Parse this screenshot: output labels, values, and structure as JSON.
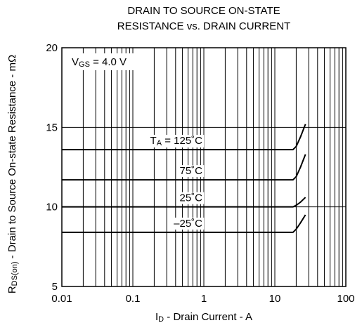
{
  "chart_data": {
    "type": "line",
    "title_lines": [
      "DRAIN TO SOURCE ON-STATE",
      "RESISTANCE vs. DRAIN CURRENT"
    ],
    "x_label": {
      "main": "I",
      "sub": "D",
      "rest": " - Drain Current - A"
    },
    "y_label": {
      "main": "R",
      "sub": "DS(on)",
      "rest": " - Drain to Source On-state Resistance - mΩ"
    },
    "condition": {
      "main": "V",
      "sub": "GS",
      "rest": " = 4.0 V"
    },
    "series_prefix": {
      "main": "T",
      "sub": "A",
      "rest": " = "
    },
    "x": [
      0.01,
      1,
      18,
      20,
      23,
      27
    ],
    "series": [
      {
        "name": "125˚C",
        "color": "#000000",
        "values": [
          13.6,
          13.6,
          13.6,
          13.8,
          14.4,
          15.2
        ]
      },
      {
        "name": "75˚C",
        "color": "#000000",
        "values": [
          11.7,
          11.7,
          11.7,
          11.9,
          12.5,
          13.3
        ]
      },
      {
        "name": "25˚C",
        "color": "#000000",
        "values": [
          10.0,
          10.0,
          10.0,
          10.1,
          10.3,
          10.6
        ]
      },
      {
        "name": "–25˚C",
        "color": "#000000",
        "values": [
          8.4,
          8.4,
          8.4,
          8.6,
          9.0,
          9.5
        ]
      }
    ],
    "x_log": true,
    "xlim": [
      0.01,
      100
    ],
    "xticks": [
      0.01,
      0.1,
      1,
      10,
      100
    ],
    "ylim": [
      5,
      20
    ],
    "yticks": [
      5,
      10,
      15,
      20
    ],
    "grid": true
  }
}
